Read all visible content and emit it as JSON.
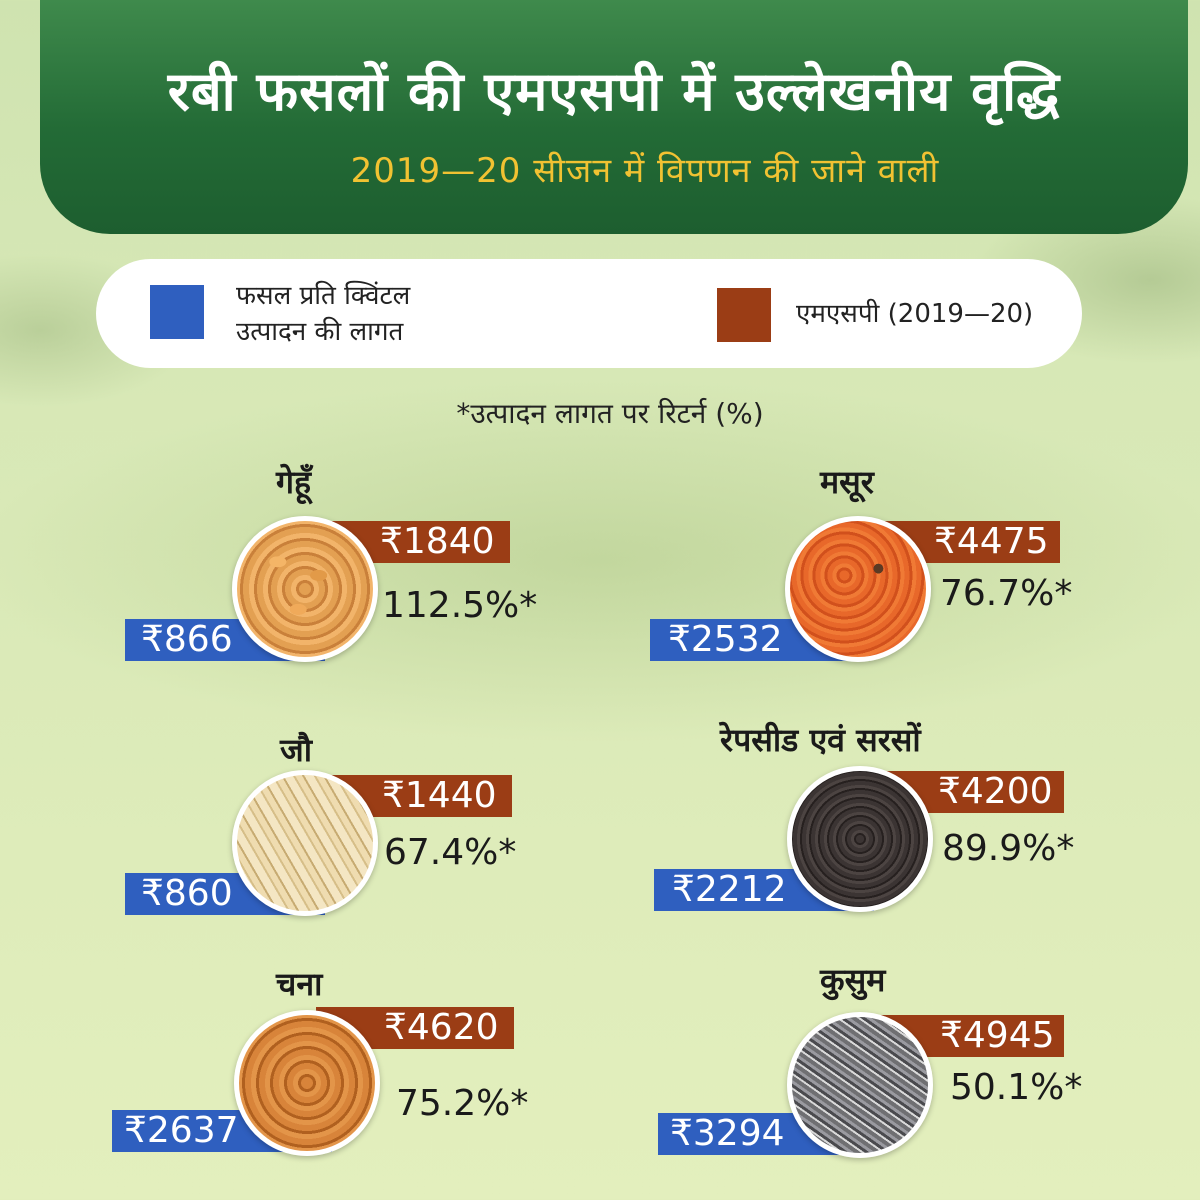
{
  "header": {
    "title": "रबी फसलों की एमएसपी में उल्लेखनीय वृद्धि",
    "subtitle": "2019—20 सीजन में विपणन की जाने वाली"
  },
  "legend": {
    "cost_line1": "फसल प्रति क्विंटल",
    "cost_line2": "उत्पादन की लागत",
    "msp_label": "एमएसपी (2019—20)",
    "cost_color": "#2f5fbf",
    "msp_color": "#9b3d15"
  },
  "note": "*उत्पादन लागत पर रिटर्न (%)",
  "chart_data": {
    "type": "table",
    "columns": [
      "फसल प्रति क्विंटल उत्पादन की लागत",
      "एमएसपी (2019—20)",
      "*उत्पादन लागत पर रिटर्न (%)"
    ],
    "rows": [
      {
        "crop": "गेहूँ",
        "cost": "₹866",
        "msp": "₹1840",
        "return": "112.5%*",
        "image": "wheat-grains"
      },
      {
        "crop": "मसूर",
        "cost": "₹2532",
        "msp": "₹4475",
        "return": "76.7%*",
        "image": "red-lentils"
      },
      {
        "crop": "जौ",
        "cost": "₹860",
        "msp": "₹1440",
        "return": "67.4%*",
        "image": "barley-grains"
      },
      {
        "crop": "रेपसीड एवं सरसों",
        "cost": "₹2212",
        "msp": "₹4200",
        "return": "89.9%*",
        "image": "mustard-seeds"
      },
      {
        "crop": "चना",
        "cost": "₹2637",
        "msp": "₹4620",
        "return": "75.2%*",
        "image": "chickpeas"
      },
      {
        "crop": "कुसुम",
        "cost": "₹3294",
        "msp": "₹4945",
        "return": "50.1%*",
        "image": "safflower-seeds"
      }
    ]
  }
}
